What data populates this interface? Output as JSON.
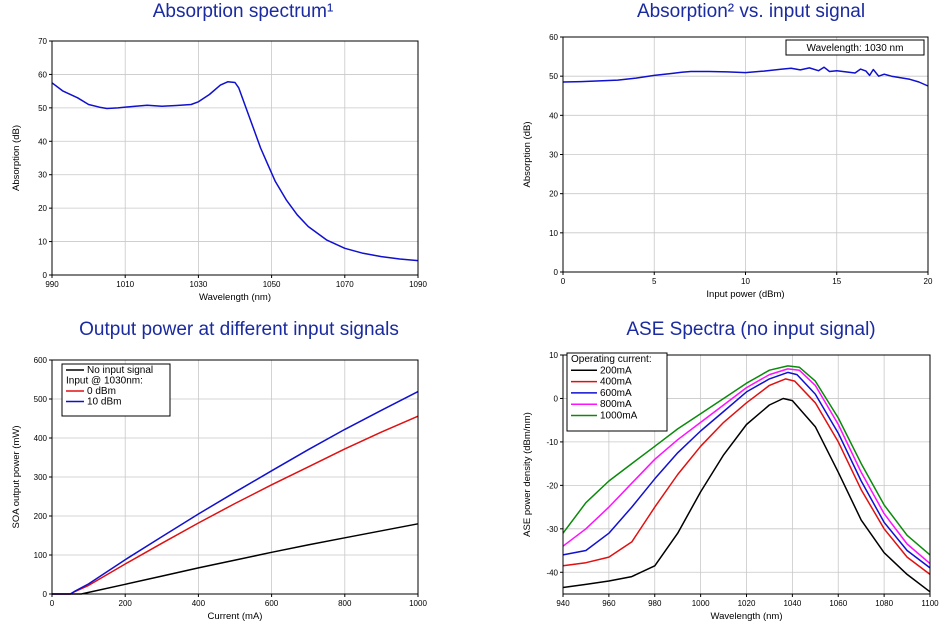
{
  "chart_data": [
    {
      "type": "line",
      "title": "Absorption spectrum¹",
      "xlabel": "Wavelength (nm)",
      "ylabel": "Absorption (dB)",
      "xlim": [
        990,
        1090
      ],
      "ylim": [
        0,
        70
      ],
      "xticks": [
        990,
        1010,
        1030,
        1050,
        1070,
        1090
      ],
      "yticks": [
        0,
        10,
        20,
        30,
        40,
        50,
        60,
        70
      ],
      "series": [
        {
          "name": "absorption",
          "color": "#1010d0",
          "x": [
            990,
            993,
            997,
            1000,
            1003,
            1005,
            1008,
            1012,
            1016,
            1020,
            1024,
            1028,
            1030,
            1033,
            1036,
            1038,
            1040,
            1041,
            1043,
            1045,
            1047,
            1049,
            1051,
            1054,
            1057,
            1060,
            1065,
            1070,
            1075,
            1080,
            1085,
            1090
          ],
          "y": [
            57.5,
            55,
            53,
            51,
            50.2,
            49.8,
            50,
            50.4,
            50.8,
            50.5,
            50.7,
            51,
            51.8,
            54,
            56.8,
            57.8,
            57.6,
            56,
            50,
            44,
            38,
            33,
            28,
            22.5,
            18,
            14.5,
            10.5,
            8,
            6.5,
            5.5,
            4.8,
            4.3
          ]
        }
      ]
    },
    {
      "type": "line",
      "title": "Absorption² vs. input signal",
      "xlabel": "Input power (dBm)",
      "ylabel": "Absorption (dB)",
      "xlim": [
        0,
        20
      ],
      "ylim": [
        0,
        60
      ],
      "xticks": [
        0,
        5,
        10,
        15,
        20
      ],
      "yticks": [
        0,
        10,
        20,
        30,
        40,
        50,
        60
      ],
      "annotation": "Wavelength: 1030 nm",
      "series": [
        {
          "name": "absorption",
          "color": "#1010d0",
          "x": [
            0,
            1,
            2,
            3,
            4,
            5,
            6,
            6.5,
            7,
            8,
            9,
            10,
            11,
            12,
            12.5,
            13,
            13.5,
            14,
            14.3,
            14.6,
            15,
            15.5,
            16,
            16.3,
            16.6,
            16.8,
            17,
            17.3,
            17.6,
            18,
            18.5,
            19,
            19.5,
            20
          ],
          "y": [
            48.5,
            48.6,
            48.8,
            49,
            49.5,
            50.2,
            50.7,
            51,
            51.2,
            51.2,
            51.1,
            50.9,
            51.3,
            51.8,
            52,
            51.6,
            52.1,
            51.4,
            52.3,
            51.2,
            51.4,
            51.1,
            50.8,
            51.8,
            51.3,
            50.2,
            51.7,
            50,
            50.5,
            50,
            49.6,
            49.2,
            48.5,
            47.5
          ]
        }
      ]
    },
    {
      "type": "line",
      "title": "Output power at different input signals",
      "xlabel": "Current (mA)",
      "ylabel": "SOA output power (mW)",
      "xlim": [
        0,
        1000
      ],
      "ylim": [
        0,
        600
      ],
      "xticks": [
        0,
        200,
        400,
        600,
        800,
        1000
      ],
      "yticks": [
        0,
        100,
        200,
        300,
        400,
        500,
        600
      ],
      "legend_header": "Input @ 1030nm:",
      "series": [
        {
          "name": "No input signal",
          "color": "#000000",
          "x": [
            0,
            80,
            100,
            200,
            300,
            400,
            500,
            600,
            700,
            800,
            900,
            1000
          ],
          "y": [
            0,
            0,
            4,
            25,
            46,
            67,
            87,
            107,
            126,
            144,
            162,
            180
          ]
        },
        {
          "name": "0 dBm",
          "color": "#e01010",
          "x": [
            0,
            50,
            60,
            100,
            200,
            300,
            400,
            500,
            600,
            700,
            800,
            900,
            1000
          ],
          "y": [
            0,
            0,
            5,
            22,
            77,
            130,
            182,
            232,
            280,
            326,
            372,
            415,
            456
          ]
        },
        {
          "name": "10 dBm",
          "color": "#1010d0",
          "x": [
            0,
            50,
            60,
            100,
            200,
            300,
            400,
            500,
            600,
            700,
            800,
            900,
            1000
          ],
          "y": [
            0,
            0,
            6,
            26,
            88,
            147,
            205,
            261,
            316,
            370,
            422,
            471,
            519
          ]
        }
      ]
    },
    {
      "type": "line",
      "title": "ASE Spectra (no input signal)",
      "xlabel": "Wavelength (nm)",
      "ylabel": "ASE power density (dBm/nm)",
      "xlim": [
        940,
        1100
      ],
      "ylim": [
        -45,
        10
      ],
      "xticks": [
        940,
        960,
        980,
        1000,
        1020,
        1040,
        1060,
        1080,
        1100
      ],
      "yticks": [
        -40,
        -30,
        -20,
        -10,
        0,
        10
      ],
      "legend_header": "Operating current:",
      "series": [
        {
          "name": "200mA",
          "color": "#000000",
          "x": [
            940,
            950,
            960,
            970,
            980,
            990,
            1000,
            1010,
            1020,
            1030,
            1036,
            1040,
            1050,
            1060,
            1070,
            1080,
            1090,
            1100
          ],
          "y": [
            -43.5,
            -42.8,
            -42,
            -41,
            -38.5,
            -31,
            -21.5,
            -13,
            -6,
            -1.5,
            0,
            -0.5,
            -6.5,
            -17,
            -28,
            -35.5,
            -40.5,
            -44.5
          ]
        },
        {
          "name": "400mA",
          "color": "#e01010",
          "x": [
            940,
            950,
            960,
            970,
            980,
            990,
            1000,
            1010,
            1020,
            1030,
            1037,
            1041,
            1050,
            1060,
            1070,
            1080,
            1090,
            1100
          ],
          "y": [
            -38.5,
            -37.8,
            -36.5,
            -33,
            -25,
            -17.5,
            -11,
            -5.5,
            -1,
            3,
            4.5,
            4,
            -1,
            -10,
            -21,
            -30,
            -36.5,
            -40.5
          ]
        },
        {
          "name": "600mA",
          "color": "#1010d0",
          "x": [
            940,
            950,
            960,
            970,
            980,
            990,
            1000,
            1010,
            1020,
            1030,
            1038,
            1042,
            1050,
            1060,
            1070,
            1080,
            1090,
            1100
          ],
          "y": [
            -36,
            -35,
            -31,
            -25,
            -18.5,
            -12.5,
            -7.5,
            -3,
            1.5,
            4.5,
            6,
            5.5,
            1,
            -8,
            -19,
            -28.5,
            -35,
            -39
          ]
        },
        {
          "name": "800mA",
          "color": "#ff10ff",
          "x": [
            940,
            950,
            960,
            970,
            980,
            990,
            1000,
            1010,
            1020,
            1030,
            1038,
            1043,
            1050,
            1060,
            1070,
            1080,
            1090,
            1100
          ],
          "y": [
            -34,
            -30,
            -25,
            -19.5,
            -14,
            -9.5,
            -5.5,
            -1.5,
            2.5,
            5.5,
            6.8,
            6.5,
            3,
            -6,
            -17,
            -26.5,
            -33.5,
            -38
          ]
        },
        {
          "name": "1000mA",
          "color": "#0a8a0a",
          "x": [
            940,
            950,
            960,
            970,
            980,
            990,
            1000,
            1010,
            1020,
            1030,
            1038,
            1043,
            1050,
            1060,
            1070,
            1080,
            1090,
            1100
          ],
          "y": [
            -31,
            -24,
            -19,
            -15,
            -11,
            -7,
            -3.5,
            0,
            3.5,
            6.5,
            7.5,
            7.2,
            4,
            -4.5,
            -15,
            -24.5,
            -31.5,
            -36
          ]
        }
      ]
    }
  ]
}
